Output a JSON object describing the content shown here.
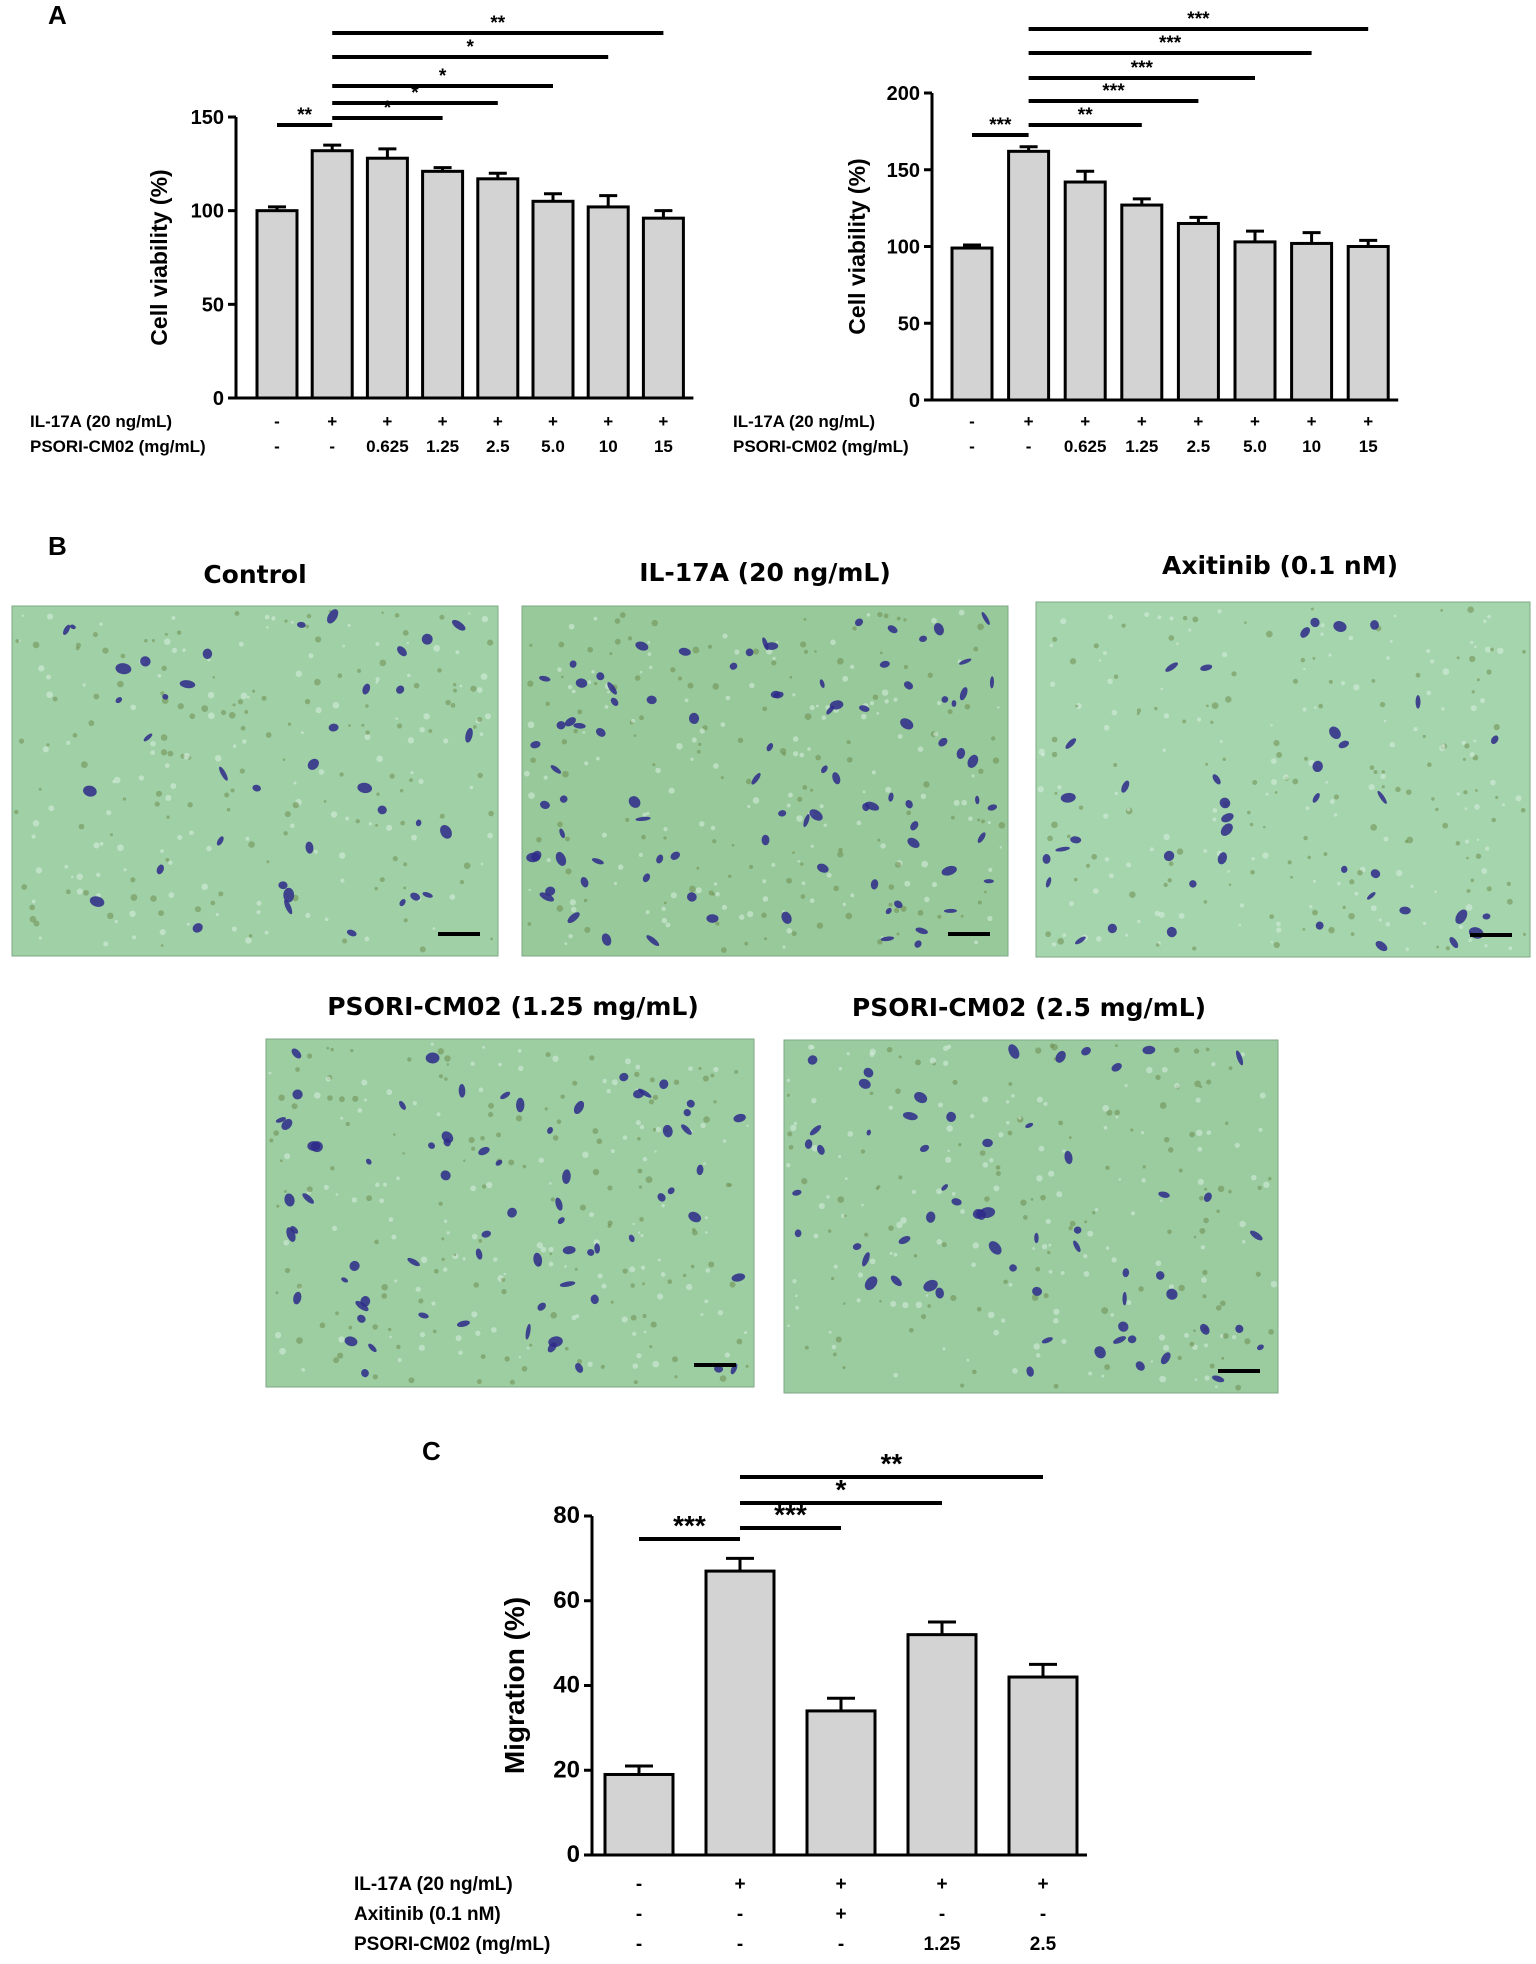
{
  "panel_labels": {
    "a": "A",
    "b": "B",
    "c": "C"
  },
  "micrographs": [
    {
      "title": "Control",
      "tone": "#9fd0a6",
      "cells": 38,
      "seed": 11
    },
    {
      "title": "IL-17A (20 ng/mL)",
      "tone": "#97c99a",
      "cells": 90,
      "seed": 23
    },
    {
      "title": "Axitinib (0.1 nM)",
      "tone": "#a5d5ad",
      "cells": 40,
      "seed": 37
    },
    {
      "title": "PSORI-CM02 (1.25 mg/mL)",
      "tone": "#9ccea2",
      "cells": 70,
      "seed": 41
    },
    {
      "title": "PSORI-CM02 (2.5 mg/mL)",
      "tone": "#9acca0",
      "cells": 60,
      "seed": 53
    }
  ],
  "colors": {
    "bar_fill": "#d3d3d3",
    "stroke": "#000000",
    "cell_stain": "#2e2a8a"
  },
  "chart_data": [
    {
      "type": "bar",
      "ylabel": "Cell viability (%)",
      "yticks": [
        "0",
        "50",
        "100",
        "150"
      ],
      "ylim": [
        0,
        150
      ],
      "values": [
        100,
        132,
        128,
        121,
        117,
        105,
        102,
        96
      ],
      "errors": [
        2,
        3,
        5,
        2,
        3,
        4,
        6,
        4
      ],
      "rows": [
        {
          "label": "IL-17A (20 ng/mL)",
          "cells": [
            "-",
            "+",
            "+",
            "+",
            "+",
            "+",
            "+",
            "+"
          ]
        },
        {
          "label": "PSORI-CM02 (mg/mL)",
          "cells": [
            "-",
            "-",
            "0.625",
            "1.25",
            "2.5",
            "5.0",
            "10",
            "15"
          ]
        }
      ],
      "significance": [
        {
          "from": 0,
          "to": 1,
          "label": "**"
        },
        {
          "from": 1,
          "to": 3,
          "label": "*"
        },
        {
          "from": 1,
          "to": 4,
          "label": "*"
        },
        {
          "from": 1,
          "to": 5,
          "label": "*"
        },
        {
          "from": 1,
          "to": 6,
          "label": "*"
        },
        {
          "from": 1,
          "to": 7,
          "label": "**"
        }
      ]
    },
    {
      "type": "bar",
      "ylabel": "Cell viability (%)",
      "yticks": [
        "0",
        "50",
        "100",
        "150",
        "200"
      ],
      "ylim": [
        0,
        200
      ],
      "values": [
        99,
        162,
        142,
        127,
        115,
        103,
        102,
        100
      ],
      "errors": [
        2,
        3,
        7,
        4,
        4,
        7,
        7,
        4
      ],
      "rows": [
        {
          "label": "IL-17A (20 ng/mL)",
          "cells": [
            "-",
            "+",
            "+",
            "+",
            "+",
            "+",
            "+",
            "+"
          ]
        },
        {
          "label": "PSORI-CM02 (mg/mL)",
          "cells": [
            "-",
            "-",
            "0.625",
            "1.25",
            "2.5",
            "5.0",
            "10",
            "15"
          ]
        }
      ],
      "significance": [
        {
          "from": 0,
          "to": 1,
          "label": "***"
        },
        {
          "from": 1,
          "to": 3,
          "label": "**"
        },
        {
          "from": 1,
          "to": 4,
          "label": "***"
        },
        {
          "from": 1,
          "to": 5,
          "label": "***"
        },
        {
          "from": 1,
          "to": 6,
          "label": "***"
        },
        {
          "from": 1,
          "to": 7,
          "label": "***"
        }
      ]
    },
    {
      "type": "bar",
      "ylabel": "Migration (%)",
      "yticks": [
        "0",
        "20",
        "40",
        "60",
        "80"
      ],
      "ylim": [
        0,
        80
      ],
      "values": [
        19,
        67,
        34,
        52,
        42
      ],
      "errors": [
        2,
        3,
        3,
        3,
        3
      ],
      "rows": [
        {
          "label": "IL-17A (20 ng/mL)",
          "cells": [
            "-",
            "+",
            "+",
            "+",
            "+"
          ]
        },
        {
          "label": "Axitinib (0.1 nM)",
          "cells": [
            "-",
            "-",
            "+",
            "-",
            "-"
          ]
        },
        {
          "label": "PSORI-CM02 (mg/mL)",
          "cells": [
            "-",
            "-",
            "-",
            "1.25",
            "2.5"
          ]
        }
      ],
      "significance": [
        {
          "from": 0,
          "to": 1,
          "label": "***"
        },
        {
          "from": 1,
          "to": 2,
          "label": "***"
        },
        {
          "from": 1,
          "to": 3,
          "label": "*"
        },
        {
          "from": 1,
          "to": 4,
          "label": "**"
        }
      ]
    }
  ]
}
